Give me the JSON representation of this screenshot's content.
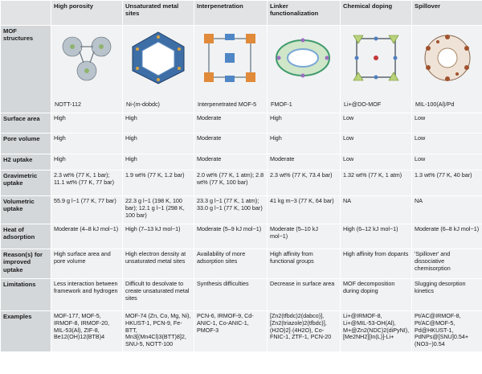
{
  "columns": [
    "High porosity",
    "Unsaturated metal sites",
    "Interpenetration",
    "Linker functionalization",
    "Chemical doping",
    "Spillover"
  ],
  "rows": {
    "structures": {
      "label": "MOF structures",
      "names": [
        "NOTT-112",
        "Ni-(m-dobdc)",
        "Interpenetrated MOF-5",
        "FMOF-1",
        "Li+@DO-MOF",
        "MIL-100(Al)/Pd"
      ]
    },
    "surface_area": {
      "label": "Surface area",
      "values": [
        "High",
        "High",
        "Moderate",
        "High",
        "Low",
        "Low"
      ]
    },
    "pore_volume": {
      "label": "Pore volume",
      "values": [
        "High",
        "High",
        "Moderate",
        "High",
        "Low",
        "Low"
      ]
    },
    "h2_uptake": {
      "label": "H2 uptake",
      "values": [
        "High",
        "High",
        "Moderate",
        "Moderate",
        "Low",
        "Low"
      ]
    },
    "gravimetric": {
      "label": "Gravimetric uptake",
      "values": [
        "2.3 wt% (77 K, 1 bar); 11.1 wt% (77 K, 77 bar)",
        "1.9 wt% (77 K, 1.2 bar)",
        "2.0 wt% (77 K, 1 atm); 2.8 wt% (77 K, 100 bar)",
        "2.3 wt% (77 K, 73.4 bar)",
        "1.32 wt% (77 K, 1 atm)",
        "1.3 wt% (77 K, 40 bar)"
      ]
    },
    "volumetric": {
      "label": "Volumetric uptake",
      "values": [
        "55.9 g l−1 (77 K, 77 bar)",
        "22.3 g l−1 (198 K, 100 bar); 12.1 g l−1 (298 K, 100 bar)",
        "23.3 g l−1 (77 K, 1 atm); 33.0 g l−1 (77 K, 100 bar)",
        "41 kg m−3 (77 K, 64 bar)",
        "NA",
        "NA"
      ]
    },
    "heat": {
      "label": "Heat of adsorption",
      "values": [
        "Moderate (4–8 kJ mol−1)",
        "High (7–13 kJ mol−1)",
        "Moderate (5–9 kJ mol−1)",
        "Moderate (5–10 kJ mol−1)",
        "High (6–12 kJ mol−1)",
        "Moderate (6–8 kJ mol−1)"
      ]
    },
    "reasons": {
      "label": "Reason(s) for improved uptake",
      "values": [
        "High surface area and pore volume",
        "High electron density at unsaturated metal sites",
        "Availability of more adsorption sites",
        "High affinity from functional groups",
        "High affinity from dopants",
        "'Spillover' and dissociative chemisorption"
      ]
    },
    "limitations": {
      "label": "Limitations",
      "values": [
        "Less interaction between framework and hydrogen",
        "Difficult to desolvate to create unsaturated metal sites",
        "Synthesis difficulties",
        "Decrease in surface area",
        "MOF decomposition during doping",
        "Slugging desorption kinetics"
      ]
    },
    "examples": {
      "label": "Examples",
      "values": [
        "MOF-177, MOF-5, IRMOF-8, IRMOF-20, MIL-53(Al), ZIF-8, Be12(OH)12(BTB)4",
        "MOF-74 (Zn, Co, Mg, Ni), HKUST-1, PCN-9, Fe-BTT, Mn3[(Mn4Cl)3(BTT)8]2, SNU-5, NOTT-100",
        "PCN-6, IRMOF-9, Cd-ANIC-1, Co-ANIC-1, PMOF-3",
        "[Zn2(tfbdc)2(dabco)], [Zn2(triazole)2(tfbdc)], (H2O)2]·(4H2O), Co-FNIC-1, ZTF-1, PCN-20",
        "Li+@IRMOF-8, Li+@MIL-53-OH(Al), M+@Zn2(NDC)2(diPyNI), [Me2NH2][In(L)]-Li+",
        "Pt/AC@IRMOF-8, Pt/AC@MOF-5, Pd@HKUST-1, PdNPs@[SNU]0.54+(NO3−)0.54"
      ]
    }
  }
}
